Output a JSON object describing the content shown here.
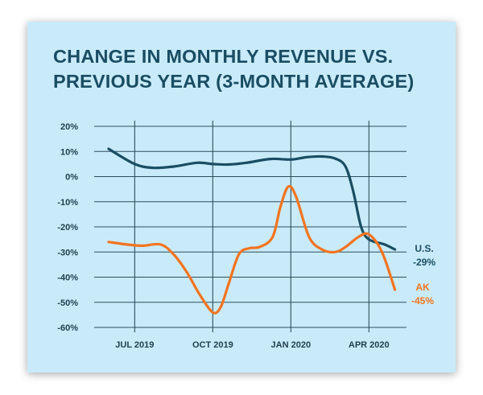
{
  "chart_data": {
    "type": "line",
    "title_lines": [
      "CHANGE IN MONTHLY REVENUE VS.",
      "PREVIOUS YEAR (3-MONTH AVERAGE)"
    ],
    "xlabel": "",
    "ylabel": "",
    "ylim": [
      -60,
      20
    ],
    "ytick_values": [
      20,
      10,
      0,
      -10,
      -20,
      -30,
      -40,
      -50,
      -60
    ],
    "ytick_labels": [
      "20%",
      "10%",
      "0%",
      "-10%",
      "-20%",
      "-30%",
      "-40%",
      "-50%",
      "-60%"
    ],
    "x_month_range": [
      0,
      12.8
    ],
    "x_ticks": [
      {
        "label": "JUL 2019",
        "month": 1
      },
      {
        "label": "OCT 2019",
        "month": 4
      },
      {
        "label": "JAN 2020",
        "month": 7
      },
      {
        "label": "APR 2020",
        "month": 10
      }
    ],
    "grid": true,
    "series": [
      {
        "name": "U.S.",
        "end_label": "U.S.",
        "end_value_label": "-29%",
        "color": "#1a4d63",
        "x": [
          0,
          1,
          1.7,
          2.5,
          3.4,
          4,
          4.6,
          5.3,
          6.2,
          7,
          7.6,
          8.2,
          8.7,
          9.1,
          9.4,
          9.7,
          10,
          10.6,
          11
        ],
        "y": [
          11,
          5,
          3.5,
          4,
          5.5,
          5,
          4.8,
          5.5,
          7,
          6.8,
          7.7,
          8,
          7.2,
          4,
          -6,
          -20,
          -25,
          -27,
          -29
        ]
      },
      {
        "name": "AK",
        "end_label": "AK",
        "end_value_label": "-45%",
        "color": "#f27420",
        "x": [
          0,
          0.7,
          1.3,
          2,
          2.5,
          3,
          3.5,
          4,
          4.3,
          4.6,
          5,
          5.4,
          5.8,
          6.3,
          6.6,
          6.9,
          7.2,
          7.7,
          8.2,
          8.7,
          9.1,
          9.6,
          10,
          10.5,
          11
        ],
        "y": [
          -26,
          -27,
          -27.5,
          -27,
          -31,
          -38,
          -47,
          -54,
          -52,
          -43,
          -31,
          -28.5,
          -28,
          -24,
          -12,
          -4,
          -8,
          -24,
          -29,
          -30,
          -28,
          -24,
          -23,
          -30,
          -45
        ]
      }
    ]
  }
}
